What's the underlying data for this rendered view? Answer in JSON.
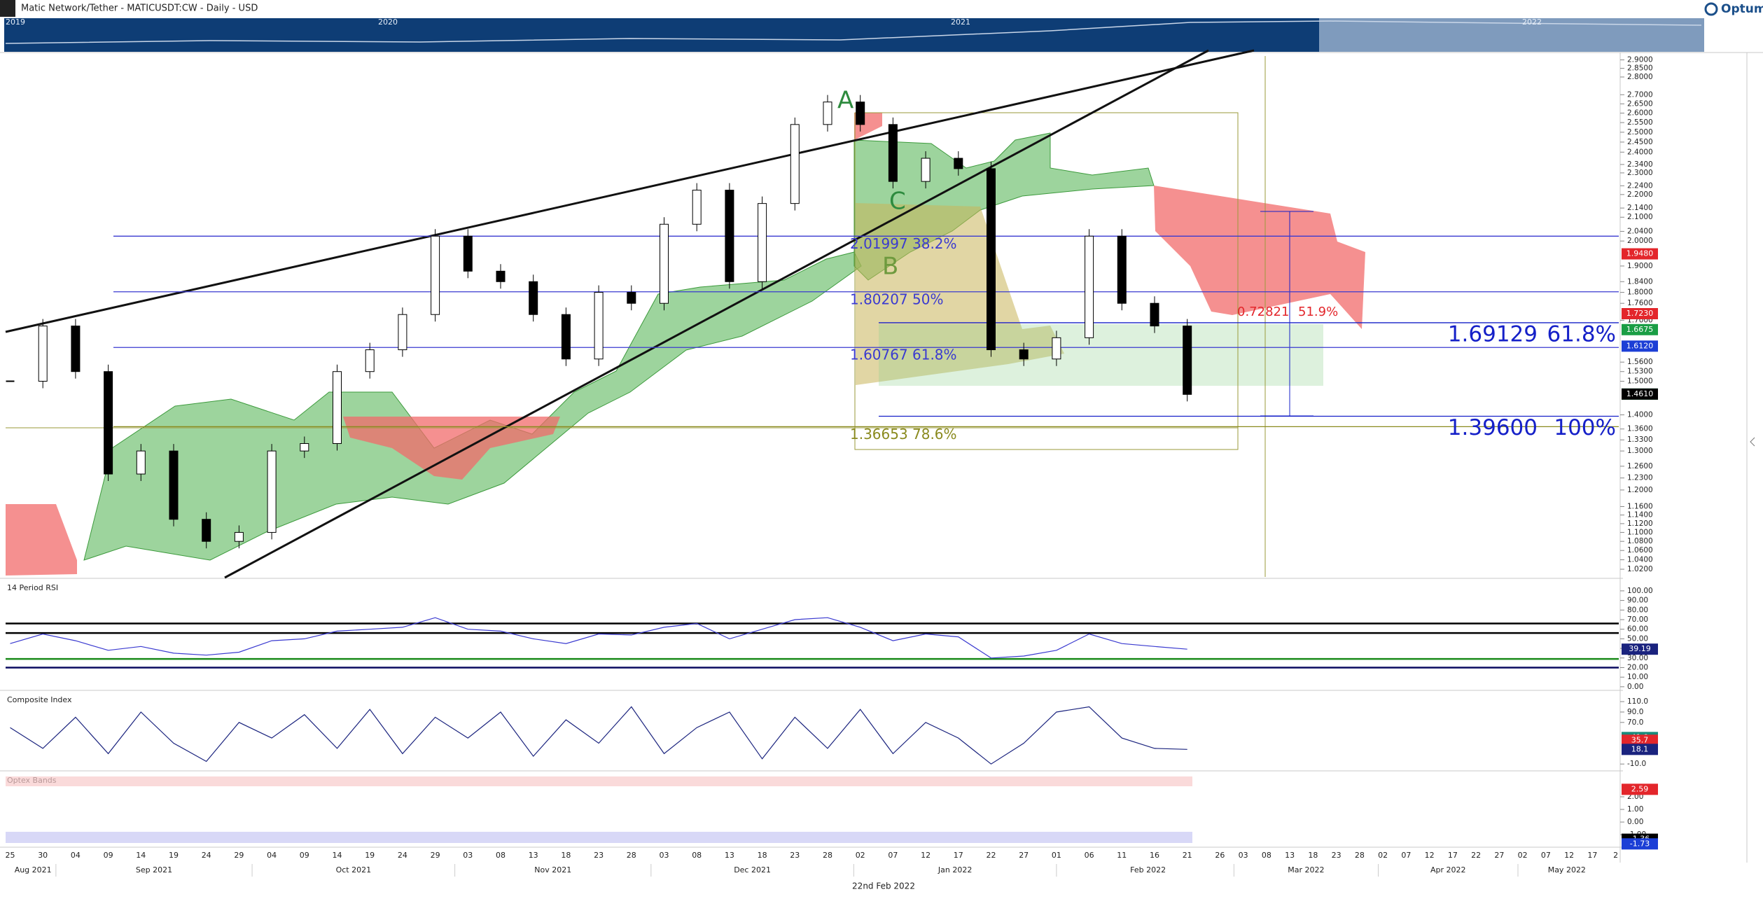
{
  "header": {
    "title": "Matic Network/Tether - MATICUSDT:CW - Daily - USD",
    "logo": "Optuma",
    "navigator_years": [
      "2019",
      "2020",
      "2021",
      "2022"
    ]
  },
  "chart_data": {
    "type": "candlestick",
    "log_scale": true,
    "categories": [
      "25",
      "30",
      "04",
      "09",
      "14",
      "19",
      "24",
      "29",
      "04",
      "09",
      "14",
      "19",
      "24",
      "29",
      "03",
      "08",
      "13",
      "18",
      "23",
      "28",
      "03",
      "08",
      "13",
      "18",
      "23",
      "28",
      "02",
      "07",
      "12",
      "17",
      "22",
      "27",
      "01",
      "06",
      "11",
      "16",
      "21",
      "26",
      "03",
      "08",
      "13",
      "18",
      "23",
      "28",
      "02",
      "07",
      "12",
      "17",
      "22",
      "27",
      "02",
      "07",
      "12",
      "17",
      "2"
    ],
    "months": [
      "Aug 2021",
      "Sep 2021",
      "Oct 2021",
      "Nov 2021",
      "Dec 2021",
      "Jan 2022",
      "Feb 2022",
      "Mar 2022",
      "Apr 2022",
      "May 2022"
    ],
    "values": [
      1.5,
      1.68,
      1.53,
      1.24,
      1.3,
      1.13,
      1.08,
      1.1,
      1.3,
      1.32,
      1.53,
      1.6,
      1.72,
      2.02,
      1.88,
      1.84,
      1.72,
      1.57,
      1.8,
      1.76,
      2.07,
      2.22,
      1.84,
      2.16,
      2.54,
      2.66,
      2.54,
      2.26,
      2.37,
      2.32,
      1.6,
      1.57,
      1.64,
      2.02,
      1.76,
      1.68,
      1.46,
      null,
      null,
      null,
      null,
      null,
      null,
      null,
      null,
      null,
      null,
      null,
      null,
      null,
      null,
      null,
      null,
      null,
      null
    ],
    "ylim": [
      1.004,
      2.94
    ],
    "yticks": [
      {
        "value": 2.9,
        "label": "2.9000"
      },
      {
        "value": 2.85,
        "label": "2.8500"
      },
      {
        "value": 2.8,
        "label": "2.8000"
      },
      {
        "value": 2.7,
        "label": "2.7000"
      },
      {
        "value": 2.65,
        "label": "2.6500"
      },
      {
        "value": 2.6,
        "label": "2.6000"
      },
      {
        "value": 2.55,
        "label": "2.5500"
      },
      {
        "value": 2.5,
        "label": "2.5000"
      },
      {
        "value": 2.45,
        "label": "2.4500"
      },
      {
        "value": 2.4,
        "label": "2.4000"
      },
      {
        "value": 2.34,
        "label": "2.3400"
      },
      {
        "value": 2.3,
        "label": "2.3000"
      },
      {
        "value": 2.24,
        "label": "2.2400"
      },
      {
        "value": 2.2,
        "label": "2.2000"
      },
      {
        "value": 2.14,
        "label": "2.1400"
      },
      {
        "value": 2.1,
        "label": "2.1000"
      },
      {
        "value": 2.04,
        "label": "2.0400"
      },
      {
        "value": 2,
        "label": "2.0000"
      },
      {
        "value": 1.9,
        "label": "1.9000"
      },
      {
        "value": 1.84,
        "label": "1.8400"
      },
      {
        "value": 1.8,
        "label": "1.8000"
      },
      {
        "value": 1.76,
        "label": "1.7600"
      },
      {
        "value": 1.7,
        "label": "1.7000"
      },
      {
        "value": 1.56,
        "label": "1.5600"
      },
      {
        "value": 1.53,
        "label": "1.5300"
      },
      {
        "value": 1.5,
        "label": "1.5000"
      },
      {
        "value": 1.4,
        "label": "1.4000"
      },
      {
        "value": 1.36,
        "label": "1.3600"
      },
      {
        "value": 1.33,
        "label": "1.3300"
      },
      {
        "value": 1.3,
        "label": "1.3000"
      },
      {
        "value": 1.26,
        "label": "1.2600"
      },
      {
        "value": 1.23,
        "label": "1.2300"
      },
      {
        "value": 1.2,
        "label": "1.2000"
      },
      {
        "value": 1.16,
        "label": "1.1600"
      },
      {
        "value": 1.14,
        "label": "1.1400"
      },
      {
        "value": 1.12,
        "label": "1.1200"
      },
      {
        "value": 1.1,
        "label": "1.1000"
      },
      {
        "value": 1.08,
        "label": "1.0800"
      },
      {
        "value": 1.06,
        "label": "1.0600"
      },
      {
        "value": 1.04,
        "label": "1.0400"
      },
      {
        "value": 1.02,
        "label": "1.0200"
      }
    ],
    "price_badges": [
      {
        "value": 1.948,
        "label": "1.9480",
        "color": "#e3262b"
      },
      {
        "value": 1.723,
        "label": "1.7230",
        "color": "#e3262b"
      },
      {
        "value": 1.6675,
        "label": "1.6675",
        "color": "#1a9e45"
      },
      {
        "value": 1.612,
        "label": "1.6120",
        "color": "#1c3fd6"
      },
      {
        "value": 1.461,
        "label": "1.4610",
        "color": "#22c55e"
      },
      {
        "value": 1.461,
        "label": "1.4610",
        "color": "#000000"
      }
    ],
    "fib_levels": [
      {
        "value": 2.01997,
        "label": "2.01997",
        "percent": "38.2%",
        "color": "#3a3ad0",
        "size": "small"
      },
      {
        "value": 1.80207,
        "label": "1.80207",
        "percent": "50%",
        "color": "#3a3ad0",
        "size": "small"
      },
      {
        "value": 1.60767,
        "label": "1.60767",
        "percent": "61.8%",
        "color": "#3a3ad0",
        "size": "small"
      },
      {
        "value": 1.36653,
        "label": "1.36653",
        "percent": "78.6%",
        "color": "#8a8a1e",
        "size": "small"
      },
      {
        "value": 1.69129,
        "label": "1.69129",
        "percent": "61.8%",
        "color": "#1520c8",
        "size": "large"
      },
      {
        "value": 1.396,
        "label": "1.39600",
        "percent": "100%",
        "color": "#1520c8",
        "size": "large"
      }
    ],
    "measure": {
      "value": 0.72821,
      "label": "0.72821",
      "percent": "51.9%",
      "color": "#e3262b"
    },
    "wave_labels": [
      "A",
      "B",
      "C"
    ],
    "panels": [
      {
        "title": "14 Period RSI",
        "ylim": [
          -2.3,
          111.6
        ],
        "yticks": [
          {
            "value": 100,
            "label": "100.00"
          },
          {
            "value": 90,
            "label": "90.00"
          },
          {
            "value": 80,
            "label": "80.00"
          },
          {
            "value": 70,
            "label": "70.00"
          },
          {
            "value": 60,
            "label": "60.00"
          },
          {
            "value": 50,
            "label": "50.00"
          },
          {
            "value": 40,
            "label": "40.00"
          },
          {
            "value": 30,
            "label": "30.00"
          },
          {
            "value": 20,
            "label": "20.00"
          },
          {
            "value": 10,
            "label": "10.00"
          },
          {
            "value": 0,
            "label": "0.00"
          }
        ],
        "levels": [
          66,
          56,
          29,
          20
        ],
        "values": [
          45,
          55,
          48,
          38,
          42,
          35,
          33,
          36,
          48,
          50,
          58,
          60,
          62,
          72,
          60,
          58,
          50,
          45,
          55,
          54,
          62,
          66,
          50,
          60,
          70,
          72,
          62,
          48,
          55,
          52,
          30,
          32,
          38,
          55,
          45,
          42,
          39.19,
          null,
          null,
          null,
          null,
          null,
          null,
          null,
          null,
          null,
          null,
          null,
          null,
          null,
          null,
          null,
          null,
          null,
          null
        ],
        "badges": [
          {
            "value": 39.19,
            "color": "#1a237e"
          }
        ]
      },
      {
        "title": "Composite Index",
        "ylim": [
          -20.5,
          129
        ],
        "yticks": [
          {
            "value": 110,
            "label": "110.0"
          },
          {
            "value": 90,
            "label": "90.0"
          },
          {
            "value": 70,
            "label": "70.0"
          },
          {
            "value": -10,
            "label": "-10.0"
          }
        ],
        "values": [
          60,
          20,
          80,
          10,
          90,
          30,
          -5,
          70,
          40,
          85,
          20,
          95,
          10,
          80,
          40,
          90,
          5,
          75,
          30,
          100,
          10,
          60,
          90,
          0,
          80,
          20,
          95,
          10,
          70,
          40,
          -10,
          30,
          90,
          100,
          40,
          20,
          18.1,
          null,
          null,
          null,
          null,
          null,
          null,
          null,
          null,
          null,
          null,
          null,
          null,
          null,
          null,
          null,
          null,
          null,
          null
        ],
        "badges": [
          {
            "value": 41,
            "label": "41.0",
            "color": "#1a8a7a"
          },
          {
            "value": 35.7,
            "color": "#e3262b"
          },
          {
            "value": 18.1,
            "color": "#1a237e"
          }
        ]
      },
      {
        "title": "Optex Bands",
        "ylim": [
          -1.88,
          3.94
        ],
        "yticks": [
          {
            "value": 2,
            "label": "2.00"
          },
          {
            "value": 1,
            "label": "1.00"
          },
          {
            "value": 0,
            "label": "0.00"
          },
          {
            "value": -1,
            "label": "-1.00"
          }
        ],
        "badges": [
          {
            "value": 2.59,
            "color": "#e3262b"
          },
          {
            "value": -1.36,
            "color": "#000000"
          },
          {
            "value": -1.73,
            "color": "#1c3fd6"
          }
        ]
      }
    ]
  },
  "footer": "22nd Feb 2022"
}
